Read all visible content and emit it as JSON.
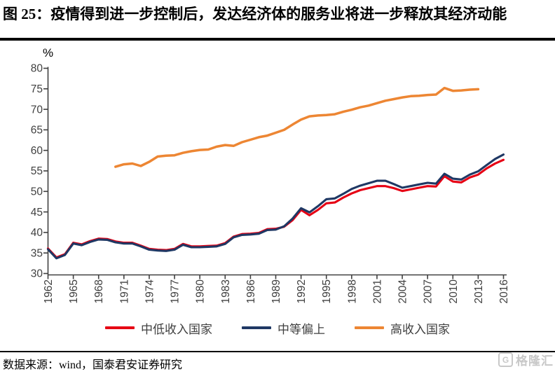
{
  "figure": {
    "title": "图 25：疫情得到进一步控制后，发达经济体的服务业将进一步释放其经济动能"
  },
  "footer": {
    "source": "数据来源：wind，国泰君安证券研究",
    "watermark_text": "格隆汇",
    "watermark_icon": "G"
  },
  "colors": {
    "axis": "#404040",
    "tick_label": "#404040",
    "title_text": "#000000",
    "watermark": "#c8c8c8"
  },
  "chart_data": {
    "type": "line",
    "title": "",
    "xlabel": "",
    "ylabel": "%",
    "ylim": [
      30,
      80
    ],
    "ytick_interval": 5,
    "x_range": [
      1962,
      2016
    ],
    "xtick_years": [
      1962,
      1965,
      1968,
      1971,
      1974,
      1977,
      1980,
      1983,
      1986,
      1989,
      1992,
      1995,
      1998,
      2001,
      2004,
      2007,
      2010,
      2013,
      2016
    ],
    "grid": false,
    "legend_position": "bottom",
    "series": [
      {
        "name": "中低收入国家",
        "color": "#e60014",
        "start_year": 1962,
        "end_year": 2016,
        "values": [
          36.1,
          33.9,
          34.7,
          37.5,
          37.1,
          37.9,
          38.5,
          38.4,
          37.8,
          37.5,
          37.5,
          36.8,
          36.0,
          35.8,
          35.7,
          36.0,
          37.2,
          36.6,
          36.6,
          36.7,
          36.8,
          37.4,
          39.0,
          39.6,
          39.7,
          39.9,
          40.8,
          40.9,
          41.4,
          43.0,
          45.5,
          44.2,
          45.5,
          47.1,
          47.3,
          48.5,
          49.5,
          50.3,
          50.8,
          51.3,
          51.3,
          50.8,
          50.1,
          50.5,
          50.9,
          51.3,
          51.2,
          53.7,
          52.4,
          52.2,
          53.4,
          54.1,
          55.6,
          56.8,
          57.7
        ]
      },
      {
        "name": "中等偏上",
        "color": "#1f3864",
        "start_year": 1962,
        "end_year": 2016,
        "values": [
          35.9,
          33.7,
          34.5,
          37.3,
          36.9,
          37.7,
          38.3,
          38.2,
          37.6,
          37.3,
          37.3,
          36.6,
          35.8,
          35.6,
          35.5,
          35.8,
          37.0,
          36.4,
          36.4,
          36.5,
          36.6,
          37.2,
          38.8,
          39.4,
          39.5,
          39.7,
          40.6,
          40.7,
          41.5,
          43.4,
          45.9,
          44.9,
          46.4,
          48.1,
          48.3,
          49.4,
          50.6,
          51.4,
          52.0,
          52.6,
          52.6,
          51.8,
          50.9,
          51.3,
          51.7,
          52.1,
          51.9,
          54.3,
          53.1,
          52.9,
          54.1,
          54.9,
          56.4,
          57.9,
          59.0
        ]
      },
      {
        "name": "高收入国家",
        "color": "#ed8633",
        "start_year": 1970,
        "end_year": 2013,
        "values": [
          56.0,
          56.6,
          56.8,
          56.2,
          57.2,
          58.5,
          58.7,
          58.8,
          59.4,
          59.8,
          60.1,
          60.2,
          60.9,
          61.3,
          61.1,
          62.0,
          62.6,
          63.2,
          63.6,
          64.3,
          65.0,
          66.3,
          67.5,
          68.3,
          68.5,
          68.6,
          68.8,
          69.4,
          69.9,
          70.5,
          70.9,
          71.5,
          72.1,
          72.5,
          72.9,
          73.2,
          73.3,
          73.5,
          73.6,
          75.2,
          74.5,
          74.6,
          74.8,
          74.9
        ]
      }
    ]
  }
}
